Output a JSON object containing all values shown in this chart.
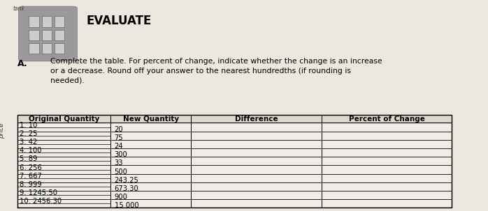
{
  "title": "EVALUATE",
  "label_a": "A.",
  "instruction": "Complete the table. For percent of change, indicate whether the change is an increase\nor a decrease. Round off your answer to the nearest hundredths (if rounding is\nneeded).",
  "col_headers": [
    "Original Quantity",
    "New Quantity",
    "Difference",
    "Percent of Change"
  ],
  "rows": [
    [
      "1. 10",
      "20"
    ],
    [
      "2. 25",
      "75"
    ],
    [
      "3. 42",
      "24"
    ],
    [
      "4. 100",
      "300"
    ],
    [
      "5. 89",
      "33"
    ],
    [
      "6. 256",
      "500"
    ],
    [
      "7. 667",
      "243.25"
    ],
    [
      "8. 999",
      "673.30"
    ],
    [
      "9. 1245.50",
      "900"
    ],
    [
      "10. 2456.30",
      "15 000"
    ]
  ],
  "bg_paper": "#ede8df",
  "bg_right_brown": "#c8a878",
  "bg_left_green": "#b5c4a8",
  "table_bg": "#f0ede6",
  "header_bg": "#ddd8ce",
  "font_size_title": 12,
  "font_size_instruction": 7.8,
  "font_size_table_header": 7.5,
  "font_size_table_data": 7.2,
  "side_text": "price",
  "top_left_text": "tank"
}
